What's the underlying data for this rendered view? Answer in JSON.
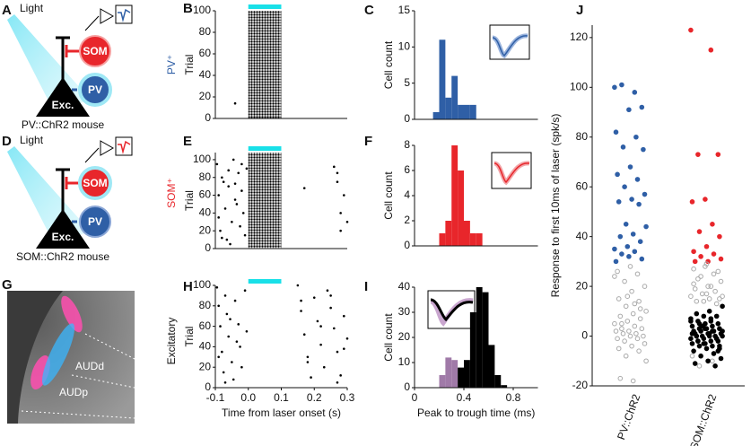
{
  "panel_letters": [
    "A",
    "B",
    "C",
    "D",
    "E",
    "F",
    "G",
    "H",
    "I",
    "J"
  ],
  "schematics": [
    {
      "light": "Light",
      "som": "SOM",
      "pv": "PV",
      "exc": "Exc.",
      "caption": "PV::ChR2 mouse"
    },
    {
      "light": "Light",
      "som": "SOM",
      "pv": "PV",
      "exc": "Exc.",
      "caption": "SOM::ChR2 mouse"
    }
  ],
  "histology": {
    "regions": [
      "AUDd",
      "AUDp"
    ]
  },
  "row_labels": [
    {
      "text": "PV⁺",
      "color": "#2f5fa6"
    },
    {
      "text": "SOM⁺",
      "color": "#e8262b"
    },
    {
      "text": "Excitatory",
      "color": "#111111"
    }
  ],
  "chart_data": [
    {
      "type": "raster",
      "ylabel": "Trial",
      "xlim": [
        -0.1,
        0.3
      ],
      "ylim": [
        0,
        100
      ],
      "yticks": [
        0,
        20,
        40,
        60,
        80,
        100
      ],
      "stimulus": [
        0,
        0.1
      ],
      "stimulus_color": "#19e0e8",
      "dense": {
        "x": [
          0,
          0.1
        ],
        "y": [
          0,
          100
        ]
      },
      "x": [
        -0.04
      ],
      "y": [
        14
      ]
    },
    {
      "type": "raster",
      "ylabel": "Trial",
      "xlim": [
        -0.1,
        0.3
      ],
      "ylim": [
        0,
        108
      ],
      "yticks": [
        0,
        20,
        40,
        60,
        80,
        100
      ],
      "stimulus": [
        0,
        0.1
      ],
      "stimulus_color": "#19e0e8",
      "dense": {
        "x": [
          0,
          0.1
        ],
        "y": [
          0,
          108
        ]
      },
      "x": [
        -0.095,
        -0.09,
        -0.085,
        -0.08,
        -0.07,
        -0.065,
        -0.06,
        -0.05,
        -0.045,
        -0.04,
        -0.03,
        -0.025,
        -0.02,
        -0.015,
        -0.01,
        -0.005,
        -0.09,
        -0.075,
        -0.055,
        -0.035,
        -0.02,
        -0.06,
        -0.08,
        -0.04,
        0.17,
        0.26,
        0.27,
        0.28,
        0.29,
        0.3,
        0.28,
        0.27
      ],
      "y": [
        95,
        60,
        20,
        80,
        45,
        10,
        70,
        30,
        100,
        55,
        85,
        25,
        65,
        40,
        15,
        90,
        35,
        75,
        5,
        50,
        95,
        88,
        12,
        73,
        68,
        92,
        85,
        40,
        60,
        30,
        20,
        75
      ]
    },
    {
      "type": "raster",
      "ylabel": "Trial",
      "xlabel": "Time from laser onset (s)",
      "xlim": [
        -0.1,
        0.3
      ],
      "xticks": [
        -0.1,
        {
          "value": 0,
          "label": "0.0"
        },
        0.1,
        0.2,
        0.3
      ],
      "ylim": [
        0,
        100
      ],
      "yticks": [
        0,
        20,
        40,
        60,
        80,
        100
      ],
      "stimulus": [
        0,
        0.1
      ],
      "stimulus_color": "#19e0e8",
      "x": [
        -0.095,
        -0.09,
        -0.085,
        -0.08,
        -0.075,
        -0.07,
        -0.065,
        -0.06,
        -0.05,
        -0.045,
        -0.04,
        -0.03,
        -0.025,
        -0.02,
        -0.01,
        -0.005,
        -0.09,
        -0.07,
        -0.055,
        -0.035,
        0.15,
        0.16,
        0.17,
        0.18,
        0.19,
        0.2,
        0.21,
        0.22,
        0.23,
        0.24,
        0.25,
        0.26,
        0.27,
        0.28,
        0.29,
        0.3,
        0.16,
        0.18,
        0.22,
        0.25,
        0.27,
        0.29
      ],
      "y": [
        98,
        80,
        60,
        35,
        15,
        90,
        72,
        50,
        25,
        8,
        85,
        62,
        40,
        20,
        95,
        55,
        30,
        5,
        67,
        45,
        100,
        75,
        52,
        30,
        10,
        88,
        65,
        42,
        20,
        95,
        78,
        58,
        35,
        12,
        70,
        48,
        85,
        25,
        60,
        90,
        5,
        38
      ]
    },
    {
      "type": "histogram",
      "ylabel": "Cell count",
      "xlim": [
        0,
        1
      ],
      "ylim": [
        0,
        15
      ],
      "yticks": [
        0,
        5,
        10,
        15
      ],
      "bins": [
        0.15,
        0.2,
        0.25,
        0.3,
        0.35,
        0.4,
        0.45,
        0.5,
        0.55
      ],
      "series": [
        {
          "color": "#2f5fa6",
          "values": [
            1,
            11,
            3,
            6,
            2,
            2,
            2,
            0
          ]
        }
      ]
    },
    {
      "type": "histogram",
      "ylabel": "Cell count",
      "xlim": [
        0,
        1
      ],
      "ylim": [
        0,
        8
      ],
      "yticks": [
        0,
        2,
        4,
        6,
        8
      ],
      "bins": [
        0.2,
        0.25,
        0.3,
        0.35,
        0.4,
        0.45,
        0.5,
        0.55,
        0.6
      ],
      "series": [
        {
          "color": "#e8262b",
          "values": [
            1,
            2,
            8,
            6,
            2,
            1,
            1,
            0
          ]
        }
      ]
    },
    {
      "type": "histogram",
      "ylabel": "Cell count",
      "xlabel": "Peak to trough time (ms)",
      "xlim": [
        0,
        1
      ],
      "ylim": [
        0,
        40
      ],
      "xticks": [
        0,
        0.4,
        0.8
      ],
      "yticks": [
        0,
        10,
        20,
        30,
        40
      ],
      "bins": [
        0.2,
        0.25,
        0.3,
        0.35,
        0.4,
        0.45,
        0.5,
        0.55,
        0.6,
        0.65,
        0.7,
        0.75,
        0.8
      ],
      "series": [
        {
          "color": "#a07aa8",
          "values": [
            5,
            12,
            11,
            0,
            0,
            0,
            0,
            0,
            0,
            0,
            0,
            0
          ]
        },
        {
          "color": "#000000",
          "values": [
            0,
            0,
            0,
            8,
            11,
            30,
            40,
            38,
            17,
            5,
            1,
            0
          ]
        }
      ]
    },
    {
      "type": "strip",
      "ylabel": "Response to first 10ms of laser (spk/s)",
      "ylim": [
        -20,
        125
      ],
      "yticks": [
        -20,
        0,
        20,
        40,
        60,
        80,
        100,
        120
      ],
      "groups": [
        {
          "label": "PV::ChR2",
          "series": [
            {
              "color": "#2f5fa6",
              "filled": true,
              "values": [
                100,
                98,
                101,
                92,
                91,
                82,
                80,
                76,
                75,
                68,
                65,
                63,
                60,
                57,
                55,
                54,
                53,
                45,
                44,
                41,
                40,
                38,
                36,
                35,
                34,
                33,
                31,
                32,
                30
              ]
            },
            {
              "color": "#aaaaaa",
              "filled": false,
              "values": [
                28,
                26,
                25,
                22,
                20,
                18,
                15,
                14,
                12,
                10,
                9,
                8,
                7,
                6,
                5,
                4,
                3,
                3,
                2,
                2,
                1,
                1,
                0,
                0,
                -1,
                -1,
                -2,
                -3,
                -4,
                -5,
                -6,
                -8,
                -10,
                -18,
                -17,
                11,
                16,
                24,
                13,
                5
              ]
            }
          ]
        },
        {
          "label": "SOM::ChR2",
          "series": [
            {
              "color": "#e8262b",
              "filled": true,
              "values": [
                123,
                115,
                73,
                73,
                55,
                54,
                45,
                42,
                40,
                36,
                34,
                33,
                32,
                31,
                30,
                30
              ]
            },
            {
              "color": "#aaaaaa",
              "filled": false,
              "values": [
                29,
                27,
                25,
                24,
                22,
                20,
                19,
                18,
                17,
                16,
                15,
                14,
                13,
                14,
                16,
                20,
                23,
                26,
                28,
                -8,
                -10,
                -12,
                15,
                17,
                21
              ]
            },
            {
              "color": "#000000",
              "filled": true,
              "values": [
                12,
                10,
                9,
                8,
                8,
                7,
                6,
                6,
                5,
                5,
                4,
                4,
                3,
                3,
                3,
                2,
                2,
                2,
                1,
                1,
                1,
                0,
                0,
                0,
                0,
                0,
                -1,
                -1,
                -1,
                -2,
                -2,
                -2,
                -3,
                -3,
                -4,
                -4,
                -5,
                -5,
                -6,
                -7,
                -8,
                -9,
                -10,
                -11,
                -12,
                4,
                2,
                1,
                0,
                -1,
                -3,
                6,
                7,
                -2,
                -6,
                3,
                1,
                2,
                5,
                -4
              ]
            }
          ]
        }
      ]
    }
  ]
}
